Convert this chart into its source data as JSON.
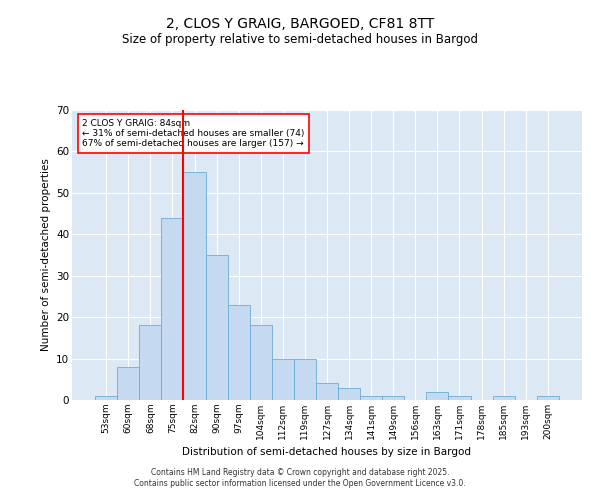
{
  "title1": "2, CLOS Y GRAIG, BARGOED, CF81 8TT",
  "title2": "Size of property relative to semi-detached houses in Bargod",
  "xlabel": "Distribution of semi-detached houses by size in Bargod",
  "ylabel": "Number of semi-detached properties",
  "bin_labels": [
    "53sqm",
    "60sqm",
    "68sqm",
    "75sqm",
    "82sqm",
    "90sqm",
    "97sqm",
    "104sqm",
    "112sqm",
    "119sqm",
    "127sqm",
    "134sqm",
    "141sqm",
    "149sqm",
    "156sqm",
    "163sqm",
    "171sqm",
    "178sqm",
    "185sqm",
    "193sqm",
    "200sqm"
  ],
  "bar_heights": [
    1,
    8,
    18,
    44,
    55,
    35,
    23,
    18,
    10,
    10,
    4,
    3,
    1,
    1,
    0,
    2,
    1,
    0,
    1,
    0,
    1
  ],
  "bar_color": "#c5d9f0",
  "bar_edge_color": "#6baed6",
  "vline_color": "red",
  "annotation_title": "2 CLOS Y GRAIG: 84sqm",
  "annotation_line1": "← 31% of semi-detached houses are smaller (74)",
  "annotation_line2": "67% of semi-detached houses are larger (157) →",
  "ylim": [
    0,
    70
  ],
  "yticks": [
    0,
    10,
    20,
    30,
    40,
    50,
    60,
    70
  ],
  "background_color": "#dce9f5",
  "footer1": "Contains HM Land Registry data © Crown copyright and database right 2025.",
  "footer2": "Contains public sector information licensed under the Open Government Licence v3.0."
}
